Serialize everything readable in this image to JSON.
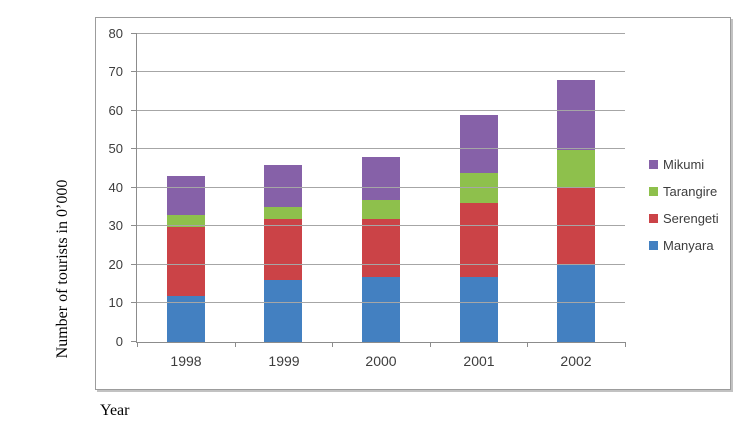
{
  "chart_data": {
    "type": "bar",
    "stacked": true,
    "title": "",
    "xlabel": "Year",
    "ylabel": "Number of tourists in 0’000",
    "categories": [
      "1998",
      "1999",
      "2000",
      "2001",
      "2002"
    ],
    "series": [
      {
        "name": "Manyara",
        "color": "#4380C1",
        "values": [
          12,
          16,
          17,
          17,
          20
        ]
      },
      {
        "name": "Serengeti",
        "color": "#CB4347",
        "values": [
          18,
          16,
          15,
          19,
          20
        ]
      },
      {
        "name": "Tarangire",
        "color": "#8EC04C",
        "values": [
          3,
          3,
          5,
          8,
          10
        ]
      },
      {
        "name": "Mikumi",
        "color": "#8661A8",
        "values": [
          10,
          11,
          11,
          15,
          18
        ]
      }
    ],
    "stack_totals": [
      43,
      46,
      48,
      59,
      68
    ],
    "ylim": [
      0,
      80
    ],
    "yticks": [
      0,
      10,
      20,
      30,
      40,
      50,
      60,
      70,
      80
    ],
    "grid": true,
    "legend_position": "right",
    "legend": [
      {
        "label": "Mikumi",
        "color": "#8661A8"
      },
      {
        "label": "Tarangire",
        "color": "#8EC04C"
      },
      {
        "label": "Serengeti",
        "color": "#CB4347"
      },
      {
        "label": "Manyara",
        "color": "#4380C1"
      }
    ]
  },
  "style_colors": {
    "gridline": "#a6a6a6",
    "axis_line": "#8c8c8c",
    "tick_text": "#3d3d3d",
    "frame_border": "#9c9c9c"
  }
}
